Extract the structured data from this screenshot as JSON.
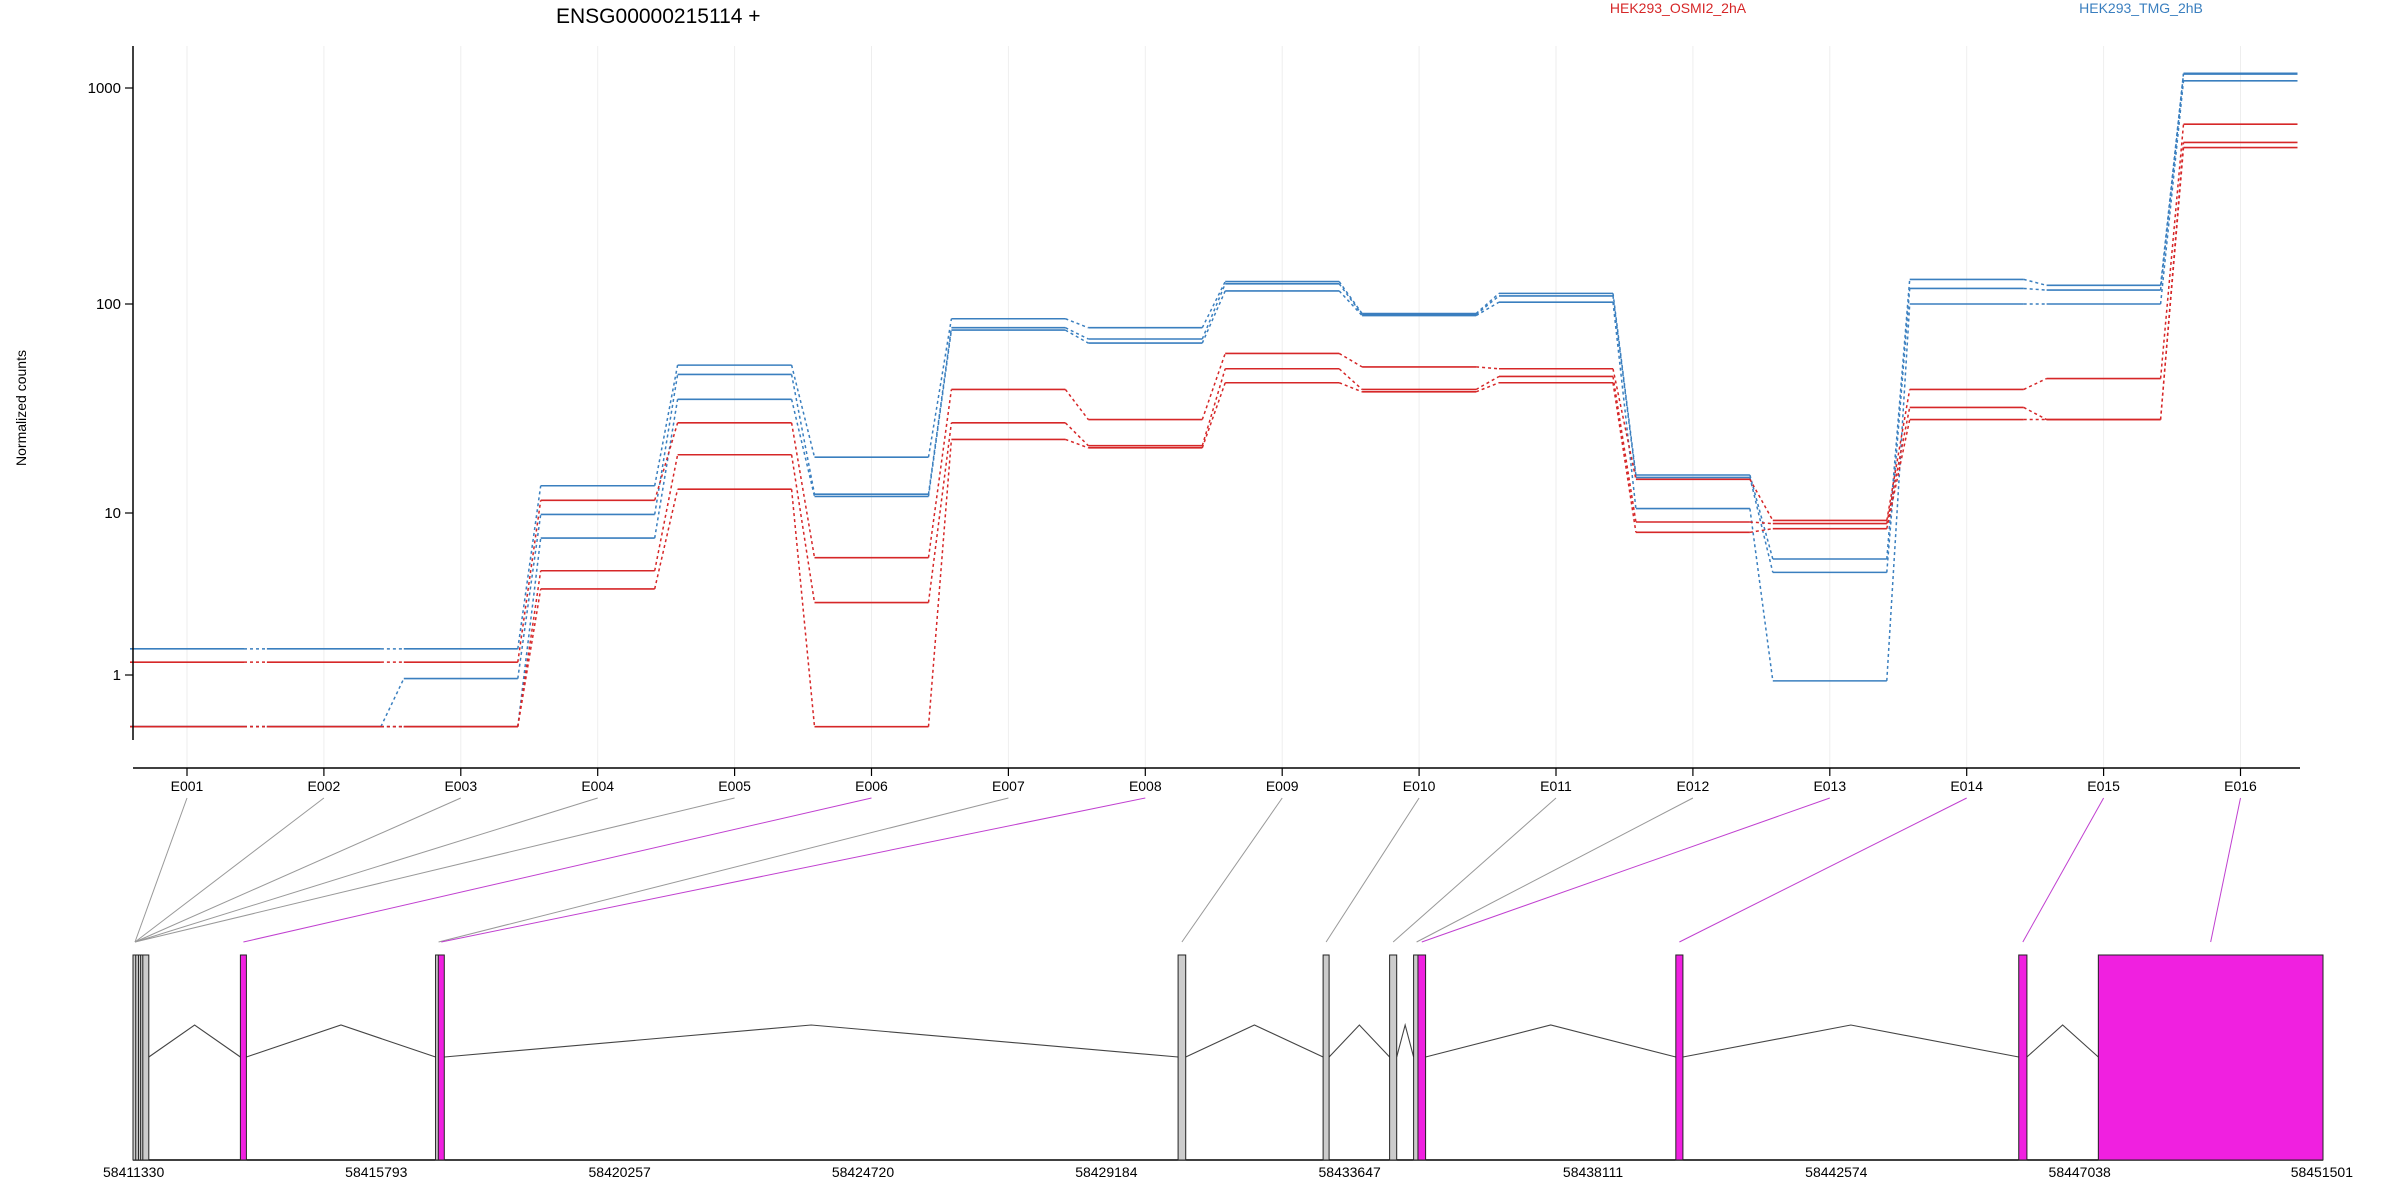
{
  "chart_data": {
    "type": "line",
    "title": "ENSG00000215114 +",
    "ylabel": "Normalized counts",
    "y_scale": "log",
    "y_ticks": [
      1,
      10,
      100,
      1000
    ],
    "y_tick_labels": [
      "1",
      "10",
      "100",
      "1000"
    ],
    "ylim": [
      0.42,
      1600
    ],
    "categories": [
      "E001",
      "E002",
      "E003",
      "E004",
      "E005",
      "E006",
      "E007",
      "E008",
      "E009",
      "E010",
      "E011",
      "E012",
      "E013",
      "E014",
      "E015",
      "E016"
    ],
    "legend": [
      {
        "label": "HEK293_OSMI2_2hA",
        "color": "#d62728"
      },
      {
        "label": "HEK293_TMG_2hB",
        "color": "#3a7fbf"
      }
    ],
    "series": [
      {
        "group": "HEK293_TMG_2hB",
        "color": "#3a7fbf",
        "values": [
          1.45,
          1.45,
          1.45,
          13.5,
          51,
          18.5,
          85,
          77,
          127,
          90,
          112,
          15.2,
          5.2,
          130,
          122,
          1170
        ]
      },
      {
        "group": "HEK293_TMG_2hB",
        "color": "#3a7fbf",
        "values": [
          0.48,
          0.48,
          0.95,
          9.8,
          46,
          12.3,
          77,
          68,
          124,
          89,
          109,
          14.8,
          4.3,
          118,
          116,
          1160
        ]
      },
      {
        "group": "HEK293_TMG_2hB",
        "color": "#3a7fbf",
        "values": [
          0.48,
          0.48,
          0.48,
          7,
          35,
          12,
          75,
          65,
          115,
          88,
          102,
          10.5,
          0.92,
          100,
          100,
          1080
        ]
      },
      {
        "group": "HEK293_OSMI2_2hA",
        "color": "#d62728",
        "values": [
          1.2,
          1.2,
          1.2,
          11.5,
          27,
          5.3,
          39,
          28,
          58,
          50,
          49,
          14.5,
          9,
          39,
          44,
          680
        ]
      },
      {
        "group": "HEK293_OSMI2_2hA",
        "color": "#d62728",
        "values": [
          0.48,
          0.48,
          0.48,
          4.4,
          19,
          2.8,
          27,
          21,
          49,
          39,
          45,
          8.8,
          8.6,
          32,
          28,
          560
        ]
      },
      {
        "group": "HEK293_OSMI2_2hA",
        "color": "#d62728",
        "values": [
          0.48,
          0.48,
          0.48,
          3.4,
          13,
          0.48,
          22.5,
          20.5,
          42,
          38,
          42,
          7.6,
          8,
          28,
          28,
          530
        ]
      }
    ],
    "gene_model": {
      "coordinate_ticks": [
        58411330,
        58415793,
        58420257,
        58424720,
        58429184,
        58433647,
        58438111,
        58442574,
        58447038,
        58451501
      ],
      "x_range": [
        58411330,
        58451501
      ],
      "exons": [
        {
          "id": "E001",
          "start": 58411330,
          "end": 58411380,
          "highlight": false
        },
        {
          "id": "E002",
          "start": 58411380,
          "end": 58411430,
          "highlight": false
        },
        {
          "id": "E003",
          "start": 58411430,
          "end": 58411470,
          "highlight": false
        },
        {
          "id": "E004",
          "start": 58411470,
          "end": 58411510,
          "highlight": false
        },
        {
          "id": "E005",
          "start": 58411510,
          "end": 58411540,
          "highlight": false
        },
        {
          "id": "E006",
          "start": 58413300,
          "end": 58413380,
          "highlight": true
        },
        {
          "id": "E007",
          "start": 58416880,
          "end": 58416930,
          "highlight": false
        },
        {
          "id": "E008",
          "start": 58416930,
          "end": 58416990,
          "highlight": true
        },
        {
          "id": "E009",
          "start": 58430500,
          "end": 58430640,
          "highlight": false
        },
        {
          "id": "E010",
          "start": 58433160,
          "end": 58433270,
          "highlight": false
        },
        {
          "id": "E011",
          "start": 58434380,
          "end": 58434510,
          "highlight": false
        },
        {
          "id": "E012",
          "start": 58434820,
          "end": 58434900,
          "highlight": false
        },
        {
          "id": "E013",
          "start": 58434900,
          "end": 58435040,
          "highlight": true
        },
        {
          "id": "E014",
          "start": 58439630,
          "end": 58439760,
          "highlight": true
        },
        {
          "id": "E015",
          "start": 58445920,
          "end": 58446070,
          "highlight": true
        },
        {
          "id": "E016",
          "start": 58447380,
          "end": 58451501,
          "highlight": true
        }
      ]
    }
  }
}
